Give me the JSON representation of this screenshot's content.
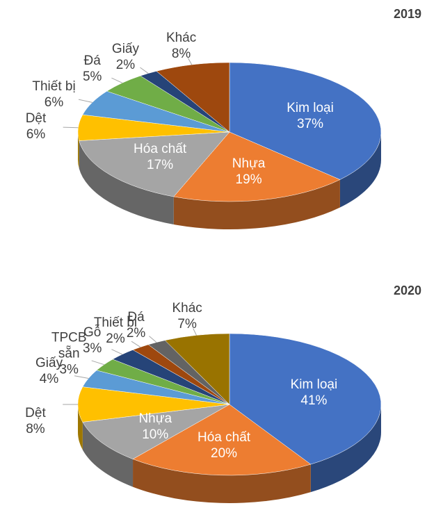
{
  "chart_data": [
    {
      "type": "pie",
      "title": "2019",
      "categories": [
        "Kim loại",
        "Nhựa",
        "Hóa chất",
        "Dệt",
        "Thiết bị",
        "Đá",
        "Giấy",
        "Khác"
      ],
      "values": [
        37,
        19,
        17,
        6,
        6,
        5,
        2,
        8
      ],
      "value_labels": [
        "37%",
        "19%",
        "17%",
        "6%",
        "6%",
        "5%",
        "2%",
        "8%"
      ],
      "colors": [
        "#4472c4",
        "#ed7d31",
        "#a5a5a5",
        "#ffc000",
        "#5b9bd5",
        "#70ad47",
        "#264478",
        "#9e480e"
      ]
    },
    {
      "type": "pie",
      "title": "2020",
      "categories": [
        "Kim loại",
        "Hóa chất",
        "Nhựa",
        "Dệt",
        "Giấy",
        "TPCB sẵn",
        "Gỗ",
        "Thiết bị",
        "Đá",
        "Khác"
      ],
      "values": [
        41,
        20,
        10,
        8,
        4,
        3,
        3,
        2,
        2,
        7
      ],
      "value_labels": [
        "41%",
        "20%",
        "10%",
        "8%",
        "4%",
        "3%",
        "3%",
        "2%",
        "2%",
        "7%"
      ],
      "colors": [
        "#4472c4",
        "#ed7d31",
        "#a5a5a5",
        "#ffc000",
        "#5b9bd5",
        "#70ad47",
        "#264478",
        "#9e480e",
        "#636363",
        "#997300"
      ]
    }
  ]
}
